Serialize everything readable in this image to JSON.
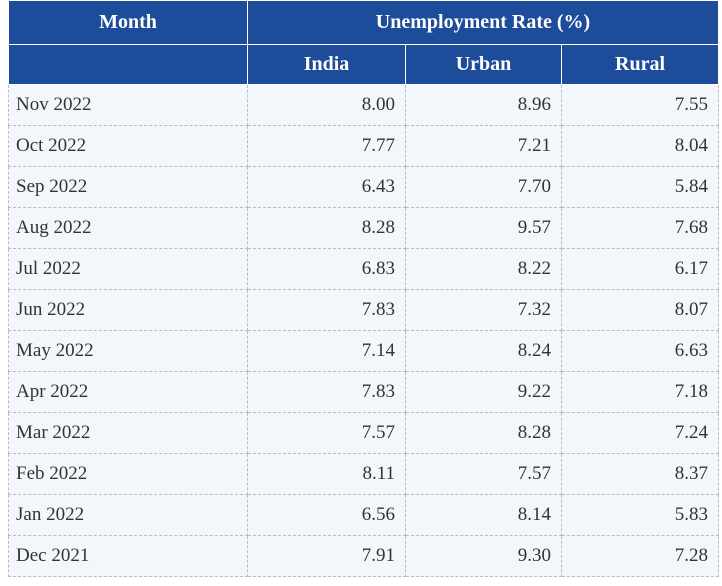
{
  "table": {
    "header": {
      "month": "Month",
      "group": "Unemployment Rate (%)",
      "columns": [
        "India",
        "Urban",
        "Rural"
      ]
    },
    "rows": [
      [
        "Nov 2022",
        "8.00",
        "8.96",
        "7.55"
      ],
      [
        "Oct 2022",
        "7.77",
        "7.21",
        "8.04"
      ],
      [
        "Sep 2022",
        "6.43",
        "7.70",
        "5.84"
      ],
      [
        "Aug 2022",
        "8.28",
        "9.57",
        "7.68"
      ],
      [
        "Jul 2022",
        "6.83",
        "8.22",
        "6.17"
      ],
      [
        "Jun 2022",
        "7.83",
        "7.32",
        "8.07"
      ],
      [
        "May 2022",
        "7.14",
        "8.24",
        "6.63"
      ],
      [
        "Apr 2022",
        "7.83",
        "9.22",
        "7.18"
      ],
      [
        "Mar 2022",
        "7.57",
        "8.28",
        "7.24"
      ],
      [
        "Feb 2022",
        "8.11",
        "7.57",
        "8.37"
      ],
      [
        "Jan 2022",
        "6.56",
        "8.14",
        "5.83"
      ],
      [
        "Dec 2021",
        "7.91",
        "9.30",
        "7.28"
      ]
    ]
  }
}
